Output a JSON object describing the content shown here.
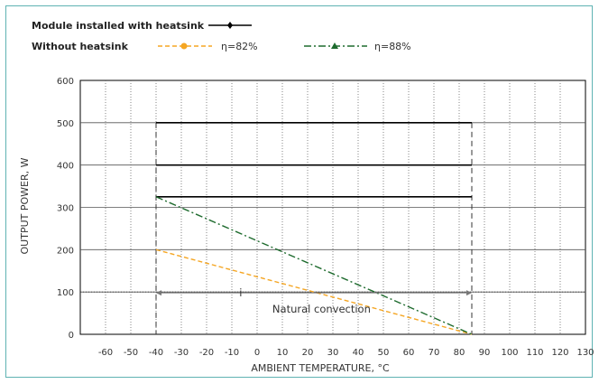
{
  "chart_data": {
    "type": "line",
    "xlabel": "AMBIENT TEMPERATURE, °C",
    "ylabel": "OUTPUT POWER, W",
    "xlim": [
      -70,
      130
    ],
    "ylim": [
      0,
      600
    ],
    "x_ticks": [
      -60,
      -50,
      -40,
      -30,
      -20,
      -10,
      0,
      10,
      20,
      30,
      40,
      50,
      60,
      70,
      80,
      90,
      100,
      110,
      120,
      130
    ],
    "y_ticks": [
      0,
      100,
      200,
      300,
      400,
      500,
      600
    ],
    "grid": true,
    "legend": {
      "with_heatsink_label": "Module installed with heatsink",
      "without_heatsink_label": "Without heatsink",
      "eta82_label": "η=82%",
      "eta88_label": "η=88%"
    },
    "series": [
      {
        "name": "Module installed with heatsink",
        "x": [
          -40,
          85
        ],
        "y": [
          500,
          500
        ],
        "color": "#000000",
        "style": "solid"
      },
      {
        "name": "Module installed with heatsink",
        "x": [
          -40,
          85
        ],
        "y": [
          400,
          400
        ],
        "color": "#000000",
        "style": "solid"
      },
      {
        "name": "Module installed with heatsink",
        "x": [
          -40,
          85
        ],
        "y": [
          325,
          325
        ],
        "color": "#000000",
        "style": "solid"
      },
      {
        "name": "η=82%",
        "x": [
          -40,
          85
        ],
        "y": [
          200,
          0
        ],
        "color": "#f5a623",
        "style": "dashed"
      },
      {
        "name": "η=88%",
        "x": [
          -40,
          85
        ],
        "y": [
          325,
          0
        ],
        "color": "#1e6b2e",
        "style": "dashdot"
      }
    ],
    "annotations": {
      "range_marker": "i",
      "natural_convection": "Natural convection",
      "range_x": [
        -40,
        85
      ],
      "range_y": 100
    }
  }
}
